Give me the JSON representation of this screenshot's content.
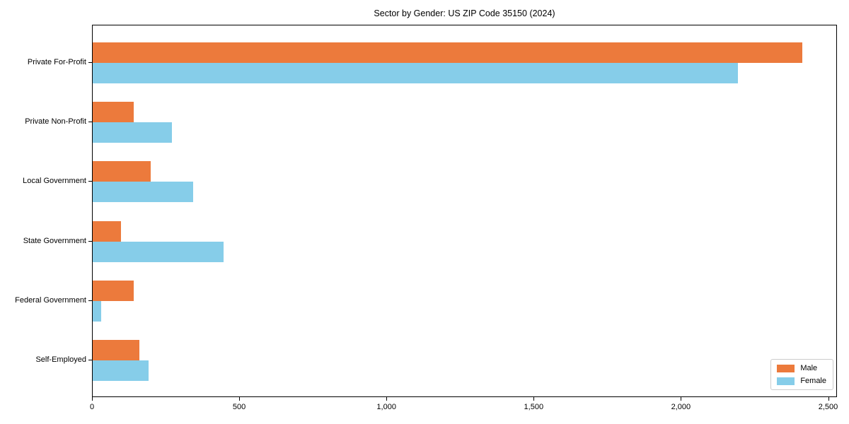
{
  "chart_data": {
    "type": "bar",
    "orientation": "horizontal",
    "title": "Sector by Gender: US ZIP Code 35150 (2024)",
    "xlabel": "",
    "ylabel": "",
    "categories": [
      "Private For-Profit",
      "Private Non-Profit",
      "Local Government",
      "State Government",
      "Federal Government",
      "Self-Employed"
    ],
    "series": [
      {
        "name": "Male",
        "color": "#ec7a3c",
        "values": [
          2410,
          140,
          197,
          96,
          139,
          159
        ]
      },
      {
        "name": "Female",
        "color": "#86cde9",
        "values": [
          2190,
          270,
          340,
          445,
          29,
          190
        ]
      }
    ],
    "xlim": [
      0,
      2530
    ],
    "x_ticks": [
      0,
      500,
      1000,
      1500,
      2000,
      2500
    ],
    "x_tick_labels": [
      "0",
      "500",
      "1,000",
      "1,500",
      "2,000",
      "2,500"
    ],
    "grid": false,
    "legend_position": "lower right"
  }
}
